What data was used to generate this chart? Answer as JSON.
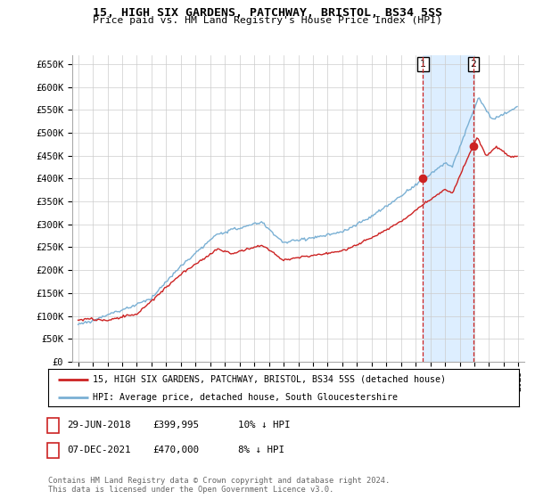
{
  "title": "15, HIGH SIX GARDENS, PATCHWAY, BRISTOL, BS34 5SS",
  "subtitle": "Price paid vs. HM Land Registry's House Price Index (HPI)",
  "ylim": [
    0,
    670000
  ],
  "yticks": [
    0,
    50000,
    100000,
    150000,
    200000,
    250000,
    300000,
    350000,
    400000,
    450000,
    500000,
    550000,
    600000,
    650000
  ],
  "ytick_labels": [
    "£0",
    "£50K",
    "£100K",
    "£150K",
    "£200K",
    "£250K",
    "£300K",
    "£350K",
    "£400K",
    "£450K",
    "£500K",
    "£550K",
    "£600K",
    "£650K"
  ],
  "hpi_color": "#7ab0d4",
  "hpi_fill_color": "#ddeeff",
  "price_color": "#cc2222",
  "marker_color": "#cc2222",
  "vline_color": "#cc2222",
  "grid_color": "#cccccc",
  "background_color": "#ffffff",
  "legend_label_price": "15, HIGH SIX GARDENS, PATCHWAY, BRISTOL, BS34 5SS (detached house)",
  "legend_label_hpi": "HPI: Average price, detached house, South Gloucestershire",
  "sale1_date": "29-JUN-2018",
  "sale1_price": "£399,995",
  "sale1_note": "10% ↓ HPI",
  "sale2_date": "07-DEC-2021",
  "sale2_price": "£470,000",
  "sale2_note": "8% ↓ HPI",
  "footer": "Contains HM Land Registry data © Crown copyright and database right 2024.\nThis data is licensed under the Open Government Licence v3.0.",
  "sale1_x": 2018.5,
  "sale1_y": 399995,
  "sale2_x": 2021.92,
  "sale2_y": 470000,
  "vline1_x": 2018.5,
  "vline2_x": 2021.92,
  "xlim_left": 1994.6,
  "xlim_right": 2025.4
}
